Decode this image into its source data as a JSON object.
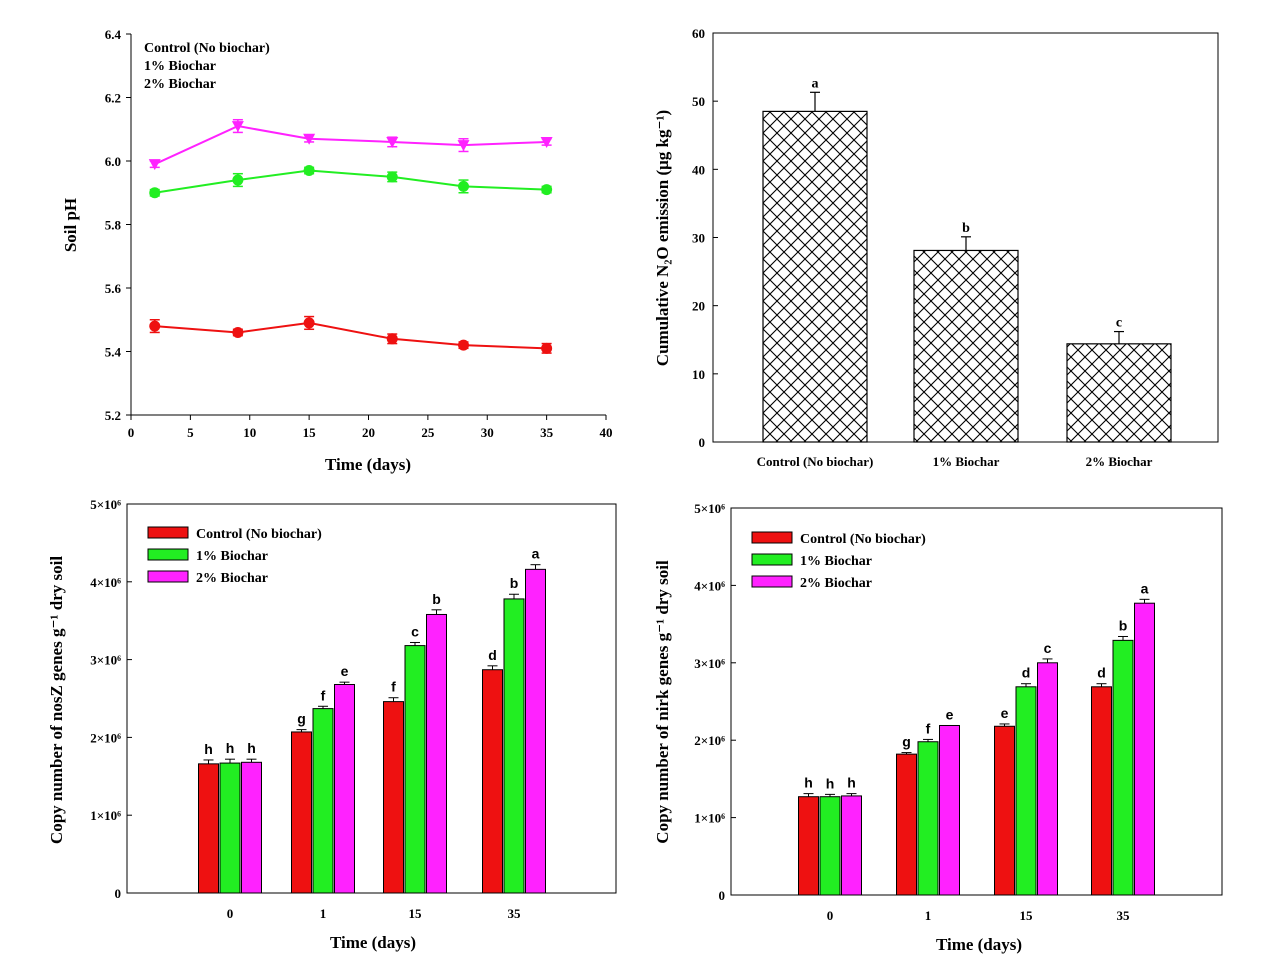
{
  "chart_data": [
    {
      "type": "line",
      "xlabel": "Time (days)",
      "ylabel": "Soil pH",
      "xlim": [
        0,
        40
      ],
      "ylim": [
        5.2,
        6.4
      ],
      "xticks": [
        0,
        5,
        10,
        15,
        20,
        25,
        30,
        35,
        40
      ],
      "yticks": [
        5.2,
        5.4,
        5.6,
        5.8,
        6.0,
        6.2,
        6.4
      ],
      "legend_position": "top-left",
      "x": [
        2,
        9,
        15,
        22,
        28,
        35
      ],
      "series": [
        {
          "name": "Control (No biochar)",
          "color": "#ee1111",
          "marker": "circle",
          "values": [
            5.48,
            5.46,
            5.49,
            5.44,
            5.42,
            5.41
          ],
          "errors": [
            0.02,
            0.01,
            0.02,
            0.015,
            0.01,
            0.015
          ]
        },
        {
          "name": "1% Biochar",
          "color": "#22ee22",
          "marker": "circle",
          "values": [
            5.9,
            5.94,
            5.97,
            5.95,
            5.92,
            5.91
          ],
          "errors": [
            0.01,
            0.02,
            0.01,
            0.015,
            0.02,
            0.01
          ]
        },
        {
          "name": "2% Biochar",
          "color": "#ff22ff",
          "marker": "triangle-down",
          "values": [
            5.99,
            6.11,
            6.07,
            6.06,
            6.05,
            6.06
          ],
          "errors": [
            0.01,
            0.02,
            0.01,
            0.015,
            0.02,
            0.01
          ]
        }
      ]
    },
    {
      "type": "bar",
      "xlabel": "",
      "ylabel": "Cumulative N₂O emission (μg kg⁻¹)",
      "ylim": [
        0,
        60
      ],
      "yticks": [
        0,
        10,
        20,
        30,
        40,
        50,
        60
      ],
      "categories": [
        "Control (No biochar)",
        "1% Biochar",
        "2% Biochar"
      ],
      "values": [
        48.5,
        28.1,
        14.4
      ],
      "errors": [
        2.8,
        2.0,
        1.8
      ],
      "letters": [
        "a",
        "b",
        "c"
      ],
      "fill": "crosshatch"
    },
    {
      "type": "bar",
      "xlabel": "Time (days)",
      "ylabel": "Copy number of nosZ genes g⁻¹ dry soil",
      "ylim": [
        0,
        5000000
      ],
      "yticks": [
        "0",
        "1×10⁶",
        "2×10⁶",
        "3×10⁶",
        "4×10⁶",
        "5×10⁶"
      ],
      "categories": [
        "0",
        "1",
        "15",
        "35"
      ],
      "legend_position": "top-left",
      "series": [
        {
          "name": "Control (No biochar)",
          "color": "#ee1111",
          "values": [
            1660000,
            2070000,
            2460000,
            2870000
          ],
          "errors": [
            50000,
            30000,
            50000,
            50000
          ],
          "letters": [
            "h",
            "g",
            "f",
            "d"
          ]
        },
        {
          "name": "1% Biochar",
          "color": "#22ee22",
          "values": [
            1670000,
            2370000,
            3180000,
            3780000
          ],
          "errors": [
            50000,
            30000,
            40000,
            60000
          ],
          "letters": [
            "h",
            "f",
            "c",
            "b"
          ]
        },
        {
          "name": "2% Biochar",
          "color": "#ff22ff",
          "values": [
            1680000,
            2680000,
            3580000,
            4160000
          ],
          "errors": [
            40000,
            30000,
            60000,
            60000
          ],
          "letters": [
            "h",
            "e",
            "b",
            "a"
          ]
        }
      ]
    },
    {
      "type": "bar",
      "xlabel": "Time (days)",
      "ylabel": "Copy number of nirk genes g⁻¹ dry soil",
      "ylim": [
        0,
        5000000
      ],
      "yticks": [
        "0",
        "1×10⁶",
        "2×10⁶",
        "3×10⁶",
        "4×10⁶",
        "5×10⁶"
      ],
      "categories": [
        "0",
        "1",
        "15",
        "35"
      ],
      "legend_position": "top-left",
      "series": [
        {
          "name": "Control (No biochar)",
          "color": "#ee1111",
          "values": [
            1270000,
            1820000,
            2180000,
            2690000
          ],
          "errors": [
            40000,
            20000,
            30000,
            40000
          ],
          "letters": [
            "h",
            "g",
            "e",
            "d"
          ]
        },
        {
          "name": "1% Biochar",
          "color": "#22ee22",
          "values": [
            1270000,
            1980000,
            2690000,
            3290000
          ],
          "errors": [
            30000,
            30000,
            40000,
            50000
          ],
          "letters": [
            "h",
            "f",
            "d",
            "b"
          ]
        },
        {
          "name": "2% Biochar",
          "color": "#ff22ff",
          "values": [
            1280000,
            2190000,
            3000000,
            3770000
          ],
          "errors": [
            30000,
            0,
            50000,
            50000
          ],
          "letters": [
            "h",
            "e",
            "c",
            "a"
          ]
        }
      ]
    }
  ]
}
